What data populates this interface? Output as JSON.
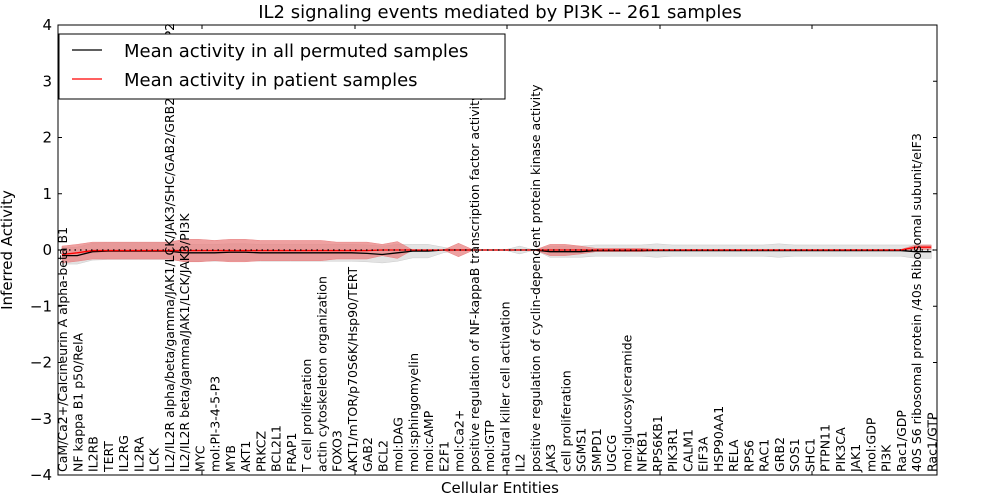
{
  "chart_data": {
    "type": "line",
    "title": "IL2 signaling events mediated by PI3K -- 261 samples",
    "xlabel": "Cellular Entities",
    "ylabel": "Inferred Activity",
    "ylim": [
      -4,
      4
    ],
    "yticks": [
      -4,
      -3,
      -2,
      -1,
      0,
      1,
      2,
      3,
      4
    ],
    "legend_placement": "top-left",
    "categories": [
      "CaM/Ca2+/Calcineurin A alpha-beta B1",
      "NF kappa B1 p50/RelA",
      "IL2RB",
      "TERT",
      "IL2RG",
      "IL2RA",
      "LCK",
      "IL2/IL2R alpha/beta/gamma/JAK1/LCK/JAK3/SHC/GAB2/GRB2/SOS1/SHP2",
      "IL2/IL2R beta/gamma/JAK1/LCK/JAK3/PI3K",
      "MYC",
      "mol:PI-3-4-5-P3",
      "MYB",
      "AKT1",
      "PRKCZ",
      "BCL2L1",
      "FRAP1",
      "T cell proliferation",
      "actin cytoskeleton organization",
      "FOXO3",
      "AKT1/mTOR/p70S6K/Hsp90/TERT",
      "GAB2",
      "BCL2",
      "mol:DAG",
      "mol:sphingomyelin",
      "mol:cAMP",
      "E2F1",
      "mol:Ca2+",
      "positive regulation of NF-kappaB transcription factor activity",
      "mol:GTP",
      "natural killer cell activation",
      "IL2",
      "positive regulation of cyclin-dependent protein kinase activity",
      "JAK3",
      "cell proliferation",
      "SGMS1",
      "SMPD1",
      "UGCG",
      "mol:glucosylceramide",
      "NFKB1",
      "RPS6KB1",
      "PIK3R1",
      "CALM1",
      "EIF3A",
      "HSP90AA1",
      "RELA",
      "RPS6",
      "RAC1",
      "GRB2",
      "SOS1",
      "SHC1",
      "PTPN11",
      "PIK3CA",
      "JAK1",
      "mol:GDP",
      "PI3K",
      "Rac1/GDP",
      "40S S6 ribosomal protein /40s Ribosomal subunit/eIF3",
      "Rac1/GTP"
    ],
    "series": [
      {
        "name": "Mean activity in all permuted samples",
        "color": "#000000",
        "band_color": "#cccccc",
        "values": [
          -0.1,
          -0.1,
          -0.03,
          -0.02,
          -0.02,
          -0.02,
          -0.02,
          -0.02,
          -0.05,
          -0.05,
          -0.05,
          -0.04,
          -0.04,
          -0.05,
          -0.05,
          -0.05,
          -0.05,
          -0.05,
          -0.05,
          -0.05,
          -0.06,
          -0.08,
          -0.05,
          -0.02,
          -0.02,
          0,
          0,
          0,
          0,
          0,
          0,
          0,
          -0.03,
          -0.03,
          -0.03,
          -0.01,
          -0.01,
          -0.01,
          -0.01,
          -0.01,
          -0.01,
          -0.01,
          -0.01,
          -0.01,
          -0.01,
          -0.01,
          -0.01,
          -0.01,
          -0.01,
          -0.01,
          -0.01,
          -0.01,
          -0.01,
          -0.01,
          -0.01,
          -0.01,
          -0.03,
          -0.03
        ],
        "spread": [
          0.15,
          0.15,
          0.15,
          0.15,
          0.15,
          0.15,
          0.15,
          0.15,
          0.15,
          0.15,
          0.15,
          0.15,
          0.15,
          0.15,
          0.15,
          0.15,
          0.15,
          0.15,
          0.15,
          0.15,
          0.15,
          0.15,
          0.15,
          0.12,
          0.12,
          0.05,
          0,
          0,
          0,
          0,
          0.07,
          0,
          0.1,
          0.1,
          0.1,
          0.1,
          0.1,
          0.1,
          0.1,
          0.12,
          0.1,
          0.1,
          0.1,
          0.1,
          0.1,
          0.1,
          0.1,
          0.12,
          0.1,
          0.1,
          0.1,
          0.1,
          0.1,
          0.1,
          0.1,
          0.1,
          0.12,
          0.12
        ]
      },
      {
        "name": "Mean activity in patient samples",
        "color": "#ff0000",
        "band_color": "#e88080",
        "values": [
          -0.08,
          -0.05,
          -0.01,
          -0.01,
          -0.01,
          -0.01,
          -0.01,
          -0.01,
          -0.01,
          -0.01,
          -0.01,
          -0.01,
          -0.01,
          -0.01,
          -0.01,
          -0.01,
          -0.01,
          -0.01,
          -0.01,
          -0.01,
          -0.01,
          0,
          0,
          0,
          0,
          0,
          0,
          0,
          0,
          0,
          0,
          0,
          0,
          0,
          0,
          0,
          0,
          0,
          0,
          0,
          0,
          0,
          0,
          0,
          0,
          0,
          0,
          0,
          0,
          0,
          0,
          0,
          0,
          0,
          0,
          0,
          0.05,
          0.05
        ],
        "spread": [
          0.15,
          0.15,
          0.15,
          0.15,
          0.15,
          0.15,
          0.15,
          0.15,
          0.2,
          0.2,
          0.18,
          0.2,
          0.2,
          0.18,
          0.18,
          0.18,
          0.18,
          0.18,
          0.15,
          0.15,
          0.15,
          0.1,
          0.15,
          0,
          0,
          0,
          0.12,
          0,
          0,
          0,
          0,
          0,
          0.1,
          0.1,
          0.07,
          0.03,
          0.03,
          0.03,
          0.03,
          0.01,
          0.01,
          0.01,
          0.01,
          0.01,
          0.01,
          0.01,
          0.01,
          0.01,
          0.01,
          0.01,
          0.01,
          0.01,
          0.01,
          0.01,
          0.01,
          0.01,
          0.04,
          0.04
        ]
      }
    ]
  }
}
